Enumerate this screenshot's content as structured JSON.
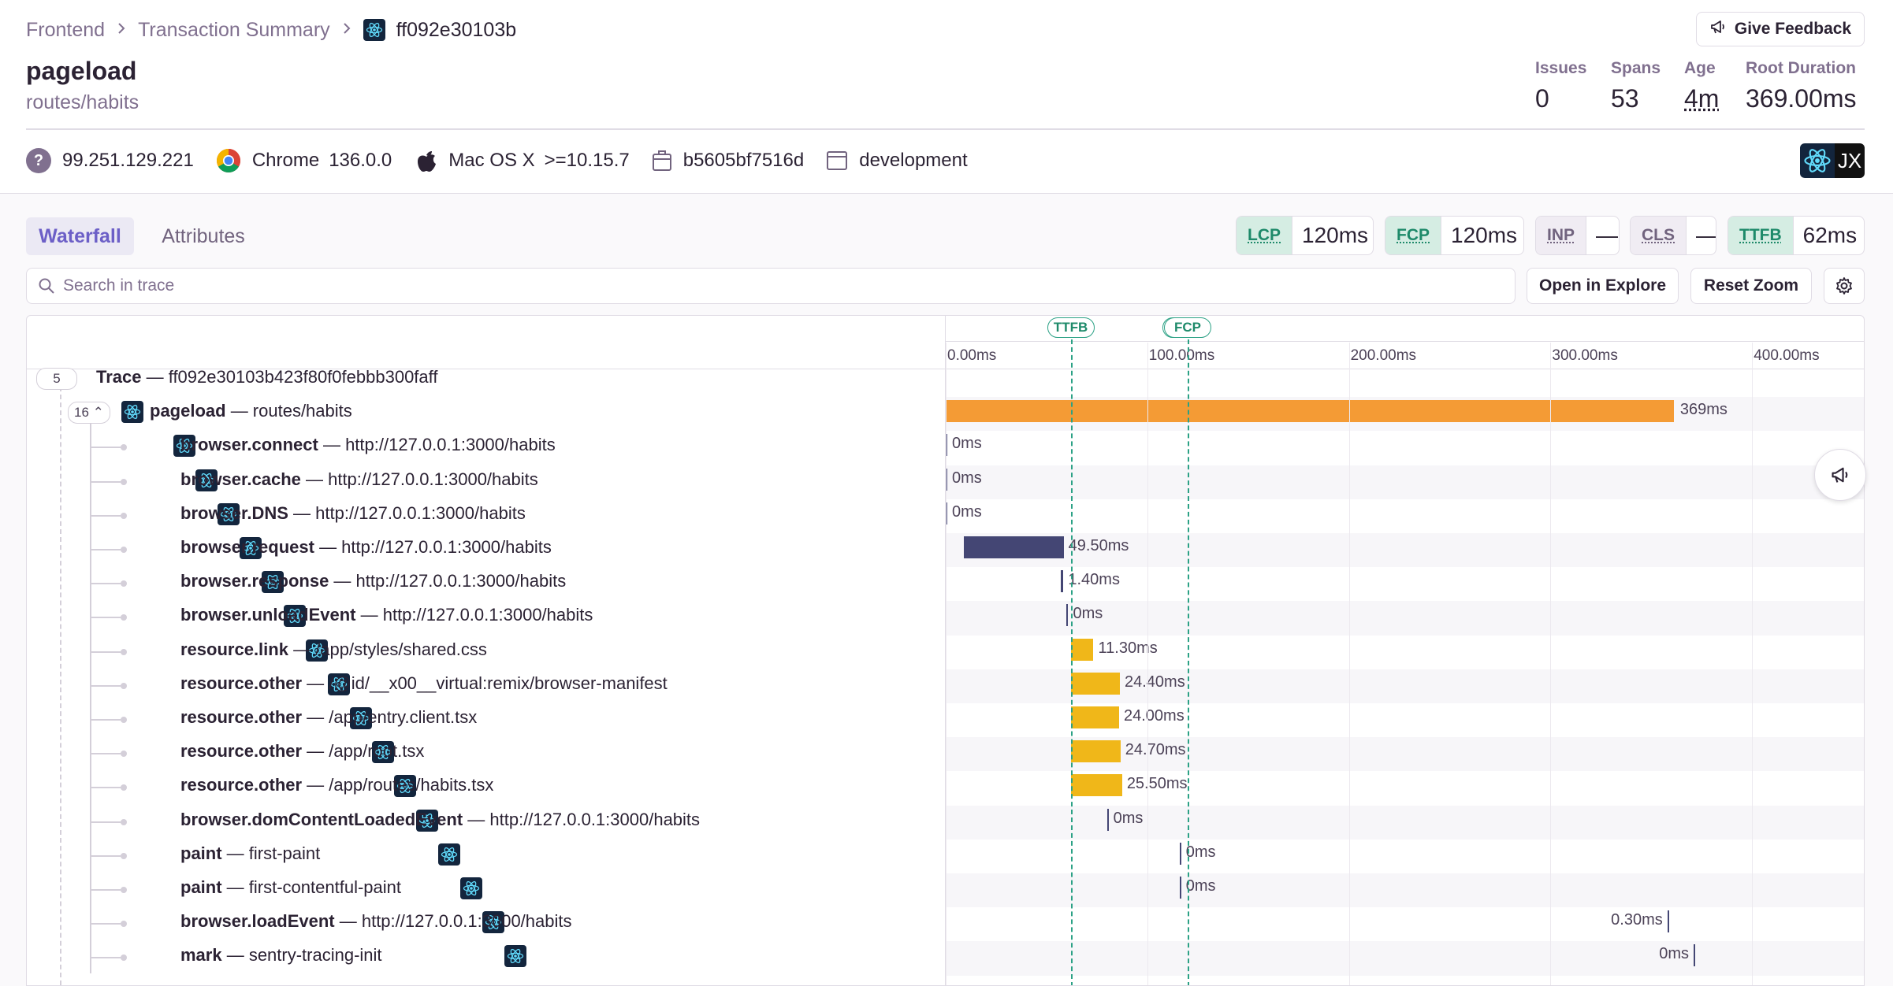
{
  "breadcrumb": {
    "items": [
      "Frontend",
      "Transaction Summary"
    ],
    "current": "ff092e30103b"
  },
  "feedback_button": "Give Feedback",
  "header": {
    "title": "pageload",
    "subtitle": "routes/habits",
    "stats": [
      {
        "label": "Issues",
        "value": "0"
      },
      {
        "label": "Spans",
        "value": "53"
      },
      {
        "label": "Age",
        "value": "4m"
      },
      {
        "label": "Root Duration",
        "value": "369.00ms"
      }
    ]
  },
  "context": {
    "ip": "99.251.129.221",
    "browser": "Chrome",
    "browser_version": "136.0.0",
    "os": "Mac OS X",
    "os_version": ">=10.15.7",
    "release": "b5605bf7516d",
    "environment": "development",
    "platform_badge": "JX"
  },
  "tabs": [
    "Waterfall",
    "Attributes"
  ],
  "web_vitals": [
    {
      "label": "LCP",
      "value": "120ms",
      "status": "good"
    },
    {
      "label": "FCP",
      "value": "120ms",
      "status": "good"
    },
    {
      "label": "INP",
      "value": "—",
      "status": "none"
    },
    {
      "label": "CLS",
      "value": "—",
      "status": "none"
    },
    {
      "label": "TTFB",
      "value": "62ms",
      "status": "good"
    }
  ],
  "search": {
    "placeholder": "Search in trace"
  },
  "toolbar": {
    "open_explore": "Open in Explore",
    "reset_zoom": "Reset Zoom"
  },
  "timeline": {
    "ticks": [
      "0.00ms",
      "100.00ms",
      "200.00ms",
      "300.00ms",
      "400.00ms"
    ],
    "markers": [
      "TTFB",
      "FCP"
    ]
  },
  "trace": {
    "root_count": "5",
    "root_label": "Trace",
    "root_id": "ff092e30103b423f80f0febbb300faff",
    "txn_count": "16",
    "txn_op": "pageload",
    "txn_desc": "routes/habits",
    "txn_duration": "369ms",
    "colors": {
      "orange": "#f49b35",
      "navy": "#444674",
      "yellow": "#f0b719",
      "marker": "#2ba185"
    }
  },
  "spans": [
    {
      "op": "browser.connect",
      "desc": "http://127.0.0.1:3000/habits",
      "duration": "0ms"
    },
    {
      "op": "browser.cache",
      "desc": "http://127.0.0.1:3000/habits",
      "duration": "0ms"
    },
    {
      "op": "browser.DNS",
      "desc": "http://127.0.0.1:3000/habits",
      "duration": "0ms"
    },
    {
      "op": "browser.request",
      "desc": "http://127.0.0.1:3000/habits",
      "duration": "49.50ms"
    },
    {
      "op": "browser.response",
      "desc": "http://127.0.0.1:3000/habits",
      "duration": "1.40ms"
    },
    {
      "op": "browser.unloadEvent",
      "desc": "http://127.0.0.1:3000/habits",
      "duration": "0ms"
    },
    {
      "op": "resource.link",
      "desc": "/app/styles/shared.css",
      "duration": "11.30ms"
    },
    {
      "op": "resource.other",
      "desc": "/@id/__x00__virtual:remix/browser-manifest",
      "duration": "24.40ms"
    },
    {
      "op": "resource.other",
      "desc": "/app/entry.client.tsx",
      "duration": "24.00ms"
    },
    {
      "op": "resource.other",
      "desc": "/app/root.tsx",
      "duration": "24.70ms"
    },
    {
      "op": "resource.other",
      "desc": "/app/routes/habits.tsx",
      "duration": "25.50ms"
    },
    {
      "op": "browser.domContentLoadedEvent",
      "desc": "http://127.0.0.1:3000/habits",
      "duration": "0ms"
    },
    {
      "op": "paint",
      "desc": "first-paint",
      "duration": "0ms"
    },
    {
      "op": "paint",
      "desc": "first-contentful-paint",
      "duration": "0ms"
    },
    {
      "op": "browser.loadEvent",
      "desc": "http://127.0.0.1:3000/habits",
      "duration": "0.30ms"
    },
    {
      "op": "mark",
      "desc": "sentry-tracing-init",
      "duration": "0ms"
    }
  ]
}
